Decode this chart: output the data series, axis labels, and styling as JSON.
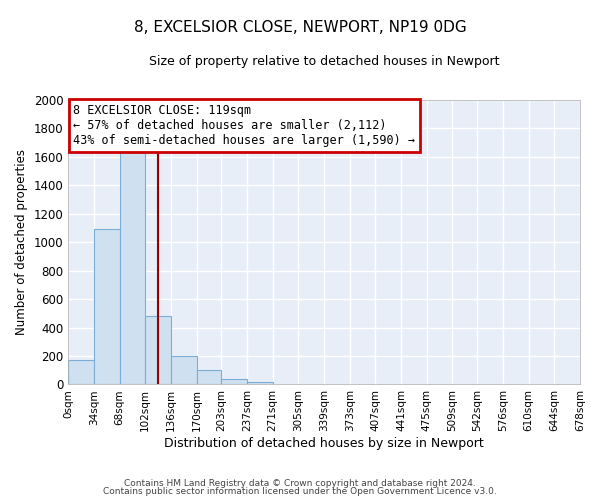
{
  "title": "8, EXCELSIOR CLOSE, NEWPORT, NP19 0DG",
  "subtitle": "Size of property relative to detached houses in Newport",
  "xlabel": "Distribution of detached houses by size in Newport",
  "ylabel": "Number of detached properties",
  "bar_color": "#cfe0f0",
  "bar_edge_color": "#7aaed6",
  "bin_edges": [
    0,
    34,
    68,
    102,
    136,
    170,
    203,
    237,
    271,
    305,
    339,
    373,
    407,
    441,
    475,
    509,
    542,
    576,
    610,
    644,
    678
  ],
  "bar_heights": [
    170,
    1090,
    1630,
    480,
    200,
    100,
    35,
    20,
    0,
    0,
    0,
    0,
    0,
    0,
    0,
    0,
    0,
    0,
    0,
    0
  ],
  "tick_labels": [
    "0sqm",
    "34sqm",
    "68sqm",
    "102sqm",
    "136sqm",
    "170sqm",
    "203sqm",
    "237sqm",
    "271sqm",
    "305sqm",
    "339sqm",
    "373sqm",
    "407sqm",
    "441sqm",
    "475sqm",
    "509sqm",
    "542sqm",
    "576sqm",
    "610sqm",
    "644sqm",
    "678sqm"
  ],
  "vline_x": 119,
  "vline_color": "#990000",
  "ylim": [
    0,
    2000
  ],
  "yticks": [
    0,
    200,
    400,
    600,
    800,
    1000,
    1200,
    1400,
    1600,
    1800,
    2000
  ],
  "annotation_title": "8 EXCELSIOR CLOSE: 119sqm",
  "annotation_line1": "← 57% of detached houses are smaller (2,112)",
  "annotation_line2": "43% of semi-detached houses are larger (1,590) →",
  "annotation_box_color": "#ffffff",
  "annotation_box_edge": "#cc0000",
  "footer1": "Contains HM Land Registry data © Crown copyright and database right 2024.",
  "footer2": "Contains public sector information licensed under the Open Government Licence v3.0.",
  "bg_color": "#ffffff",
  "plot_bg_color": "#e8eef8",
  "grid_color": "#ffffff",
  "spine_color": "#aaaaaa"
}
